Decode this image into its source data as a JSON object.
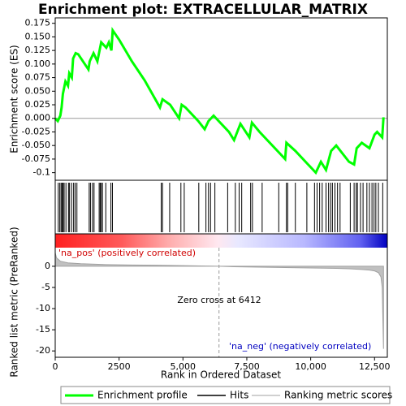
{
  "chart_data": [
    {
      "type": "line",
      "title": "Enrichment plot: EXTRACELLULAR_MATRIX",
      "ylabel": "Enrichment score (ES)",
      "xlim": [
        0,
        13000
      ],
      "ylim": [
        -0.114,
        0.185
      ],
      "yticks": [
        -0.1,
        -0.075,
        {
          "value": -0.05,
          "label": "-0.050"
        },
        -0.025,
        {
          "value": 0,
          "label": "0.000"
        },
        0.025,
        {
          "value": 0.05,
          "label": "0.050"
        },
        0.075,
        {
          "value": 0.1,
          "label": "0.100"
        },
        0.125,
        {
          "value": 0.15,
          "label": "0.150"
        },
        0.175
      ],
      "series": [
        {
          "name": "Enrichment profile",
          "color": "#00ff00",
          "x": [
            0,
            100,
            200,
            250,
            300,
            400,
            500,
            550,
            650,
            700,
            800,
            900,
            1300,
            1350,
            1500,
            1650,
            1800,
            1900,
            2000,
            2100,
            2200,
            2250,
            2500,
            3000,
            3500,
            4100,
            4200,
            4500,
            4850,
            4950,
            5100,
            5500,
            5600,
            5850,
            6000,
            6200,
            6400,
            6800,
            7000,
            7250,
            7600,
            7700,
            8000,
            8700,
            9000,
            9050,
            9400,
            9900,
            10200,
            10400,
            10600,
            10800,
            11000,
            11500,
            11700,
            11800,
            12000,
            12300,
            12500,
            12600,
            12800,
            12850
          ],
          "values": [
            0,
            -0.005,
            0.005,
            0.02,
            0.045,
            0.068,
            0.06,
            0.083,
            0.075,
            0.11,
            0.12,
            0.118,
            0.09,
            0.105,
            0.12,
            0.105,
            0.14,
            0.135,
            0.13,
            0.14,
            0.125,
            0.162,
            0.145,
            0.105,
            0.07,
            0.02,
            0.035,
            0.025,
            0,
            0.025,
            0.02,
            0,
            -0.005,
            -0.02,
            -0.005,
            0.005,
            -0.005,
            -0.025,
            -0.04,
            -0.01,
            -0.035,
            -0.008,
            -0.025,
            -0.06,
            -0.075,
            -0.045,
            -0.06,
            -0.085,
            -0.1,
            -0.08,
            -0.095,
            -0.06,
            -0.05,
            -0.08,
            -0.085,
            -0.055,
            -0.045,
            -0.055,
            -0.03,
            -0.025,
            -0.035,
            0.002
          ]
        }
      ]
    },
    {
      "type": "hits",
      "xlim": [
        0,
        13000
      ],
      "series": [
        {
          "name": "Hits",
          "color": "#000000",
          "values": [
            120,
            180,
            230,
            270,
            310,
            350,
            420,
            520,
            560,
            640,
            720,
            780,
            850,
            1330,
            1380,
            1460,
            1520,
            1720,
            1760,
            1800,
            1850,
            1980,
            2180,
            2240,
            4150,
            4200,
            4480,
            4920,
            5050,
            5620,
            5900,
            6000,
            6080,
            6250,
            6750,
            7050,
            7200,
            7300,
            7650,
            7720,
            8100,
            8750,
            9050,
            9100,
            9400,
            9850,
            10150,
            10250,
            10350,
            10450,
            10600,
            10700,
            10780,
            10850,
            10950,
            11050,
            11150,
            11550,
            11700,
            11780,
            11830,
            11950,
            12050,
            12200,
            12300,
            12400,
            12480,
            12550,
            12650,
            12820
          ]
        }
      ]
    },
    {
      "type": "area",
      "ylabel": "Ranked list metric (PreRanked)",
      "xlabel": "Rank in Ordered Dataset",
      "xlim": [
        0,
        13000
      ],
      "ylim": [
        -21.5,
        4.4
      ],
      "yticks": [
        -20,
        -15,
        -10,
        -5,
        0
      ],
      "xticks": [
        0,
        2500,
        {
          "value": 5000,
          "label": "5,000"
        },
        {
          "value": 7500,
          "label": "7,500"
        },
        {
          "value": 10000,
          "label": "10,000"
        },
        {
          "value": 12500,
          "label": "12,500"
        }
      ],
      "zero_cross": 6412,
      "zero_cross_label": "Zero cross at 6412",
      "pos_label": "'na_pos' (positively correlated)",
      "neg_label": "'na_neg' (negatively correlated)",
      "series": [
        {
          "name": "Ranking metric scores",
          "color": "#c0c0c0",
          "x": [
            0,
            50,
            200,
            500,
            1000,
            2000,
            3000,
            4000,
            5000,
            6000,
            6412,
            7000,
            8000,
            9000,
            10000,
            11000,
            11500,
            12000,
            12300,
            12500,
            12650,
            12750,
            12800,
            12850
          ],
          "values": [
            3.2,
            2.0,
            1.2,
            0.8,
            0.6,
            0.4,
            0.3,
            0.25,
            0.15,
            0.05,
            0,
            -0.1,
            -0.2,
            -0.3,
            -0.4,
            -0.5,
            -0.6,
            -0.75,
            -0.9,
            -1.1,
            -1.5,
            -2.5,
            -5,
            -19.5
          ]
        }
      ]
    }
  ]
}
